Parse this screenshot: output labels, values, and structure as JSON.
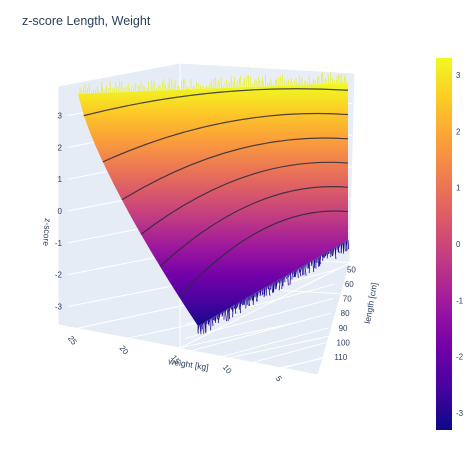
{
  "chart_data": {
    "type": "surface",
    "title": "z-score Length, Weight",
    "axes": {
      "x": {
        "title": "weight [kg]",
        "ticks": [
          25,
          20,
          15,
          10,
          5
        ],
        "range": [
          1,
          26
        ]
      },
      "y": {
        "title": "length [cm]",
        "ticks": [
          50,
          60,
          70,
          80,
          90,
          100,
          110
        ],
        "range": [
          45,
          112
        ]
      },
      "z": {
        "title": "z-score",
        "ticks": [
          3,
          2,
          1,
          0,
          -1,
          -2,
          -3
        ],
        "range": [
          -3.3,
          3.3
        ]
      }
    },
    "contour_levels": [
      -2,
      -1,
      0,
      1,
      2,
      3
    ],
    "colorbar": {
      "ticks": [
        3,
        2,
        1,
        0,
        -1,
        -2,
        -3
      ],
      "range": [
        -3.3,
        3.3
      ],
      "colorscale": [
        "#0d0887",
        "#46039f",
        "#7201a8",
        "#9c179e",
        "#bd3786",
        "#d8576b",
        "#ed7953",
        "#fb9f3a",
        "#fdca26",
        "#f0f921"
      ]
    },
    "grid": true,
    "legend": "colorbar-right"
  }
}
